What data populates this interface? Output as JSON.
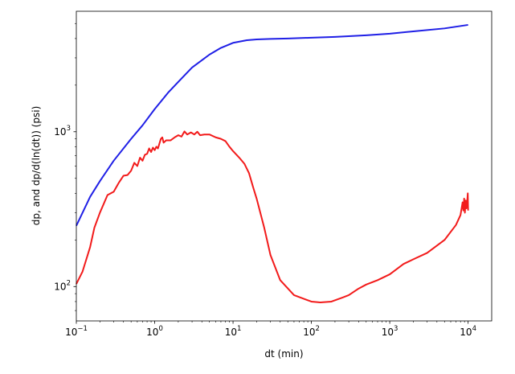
{
  "chart_data": {
    "type": "line",
    "xscale": "log",
    "yscale": "log",
    "xlabel": "dt (min)",
    "ylabel": "dp, and dp/d(ln(dt)) (psi)",
    "xlim": [
      0.1,
      20000
    ],
    "ylim": [
      60,
      6000
    ],
    "grid": false,
    "x_ticks": [
      {
        "value": 0.1,
        "base": "10",
        "exp": "−1"
      },
      {
        "value": 1,
        "base": "10",
        "exp": "0"
      },
      {
        "value": 10,
        "base": "10",
        "exp": "1"
      },
      {
        "value": 100,
        "base": "10",
        "exp": "2"
      },
      {
        "value": 1000,
        "base": "10",
        "exp": "3"
      },
      {
        "value": 10000,
        "base": "10",
        "exp": "4"
      }
    ],
    "y_ticks": [
      {
        "value": 100,
        "base": "10",
        "exp": "2"
      },
      {
        "value": 1000,
        "base": "10",
        "exp": "3"
      }
    ],
    "series": [
      {
        "color": "#1f1fe6",
        "points": [
          [
            0.1,
            247
          ],
          [
            0.15,
            380
          ],
          [
            0.2,
            480
          ],
          [
            0.3,
            650
          ],
          [
            0.5,
            900
          ],
          [
            0.7,
            1100
          ],
          [
            1.0,
            1400
          ],
          [
            1.5,
            1800
          ],
          [
            2.0,
            2100
          ],
          [
            3.0,
            2600
          ],
          [
            5.0,
            3150
          ],
          [
            7.0,
            3480
          ],
          [
            10.0,
            3750
          ],
          [
            15.0,
            3900
          ],
          [
            20.0,
            3950
          ],
          [
            30.0,
            3980
          ],
          [
            50.0,
            4000
          ],
          [
            100.0,
            4050
          ],
          [
            200.0,
            4100
          ],
          [
            500.0,
            4200
          ],
          [
            1000.0,
            4300
          ],
          [
            2000.0,
            4450
          ],
          [
            5000.0,
            4650
          ],
          [
            10000.0,
            4900
          ]
        ]
      },
      {
        "color": "#f21a1a",
        "points": [
          [
            0.1,
            104
          ],
          [
            0.12,
            125
          ],
          [
            0.15,
            180
          ],
          [
            0.17,
            240
          ],
          [
            0.2,
            300
          ],
          [
            0.25,
            390
          ],
          [
            0.3,
            410
          ],
          [
            0.35,
            470
          ],
          [
            0.4,
            520
          ],
          [
            0.45,
            525
          ],
          [
            0.5,
            560
          ],
          [
            0.55,
            630
          ],
          [
            0.6,
            600
          ],
          [
            0.65,
            680
          ],
          [
            0.7,
            650
          ],
          [
            0.75,
            710
          ],
          [
            0.8,
            720
          ],
          [
            0.85,
            780
          ],
          [
            0.9,
            740
          ],
          [
            0.95,
            790
          ],
          [
            1.0,
            760
          ],
          [
            1.05,
            800
          ],
          [
            1.1,
            780
          ],
          [
            1.2,
            900
          ],
          [
            1.25,
            920
          ],
          [
            1.3,
            850
          ],
          [
            1.4,
            880
          ],
          [
            1.6,
            880
          ],
          [
            1.8,
            920
          ],
          [
            2.0,
            950
          ],
          [
            2.2,
            930
          ],
          [
            2.4,
            1005
          ],
          [
            2.6,
            960
          ],
          [
            2.9,
            990
          ],
          [
            3.2,
            960
          ],
          [
            3.5,
            1000
          ],
          [
            3.8,
            950
          ],
          [
            4.3,
            960
          ],
          [
            5.0,
            960
          ],
          [
            6.0,
            920
          ],
          [
            7.0,
            900
          ],
          [
            8.0,
            870
          ],
          [
            9.0,
            800
          ],
          [
            10.0,
            750
          ],
          [
            12.0,
            680
          ],
          [
            14.0,
            620
          ],
          [
            16.0,
            540
          ],
          [
            18.0,
            440
          ],
          [
            20.0,
            370
          ],
          [
            25.0,
            240
          ],
          [
            30.0,
            160
          ],
          [
            40.0,
            110
          ],
          [
            60.0,
            88
          ],
          [
            100.0,
            80
          ],
          [
            130.0,
            79
          ],
          [
            180.0,
            80
          ],
          [
            250.0,
            85
          ],
          [
            300.0,
            88
          ],
          [
            400.0,
            97
          ],
          [
            500.0,
            103
          ],
          [
            700.0,
            110
          ],
          [
            1000.0,
            120
          ],
          [
            1500.0,
            140
          ],
          [
            2000.0,
            150
          ],
          [
            3000.0,
            165
          ],
          [
            5000.0,
            200
          ],
          [
            7000.0,
            250
          ],
          [
            8000.0,
            290
          ],
          [
            8500.0,
            350
          ],
          [
            8700.0,
            310
          ],
          [
            8900.0,
            370
          ],
          [
            9100.0,
            300
          ],
          [
            9300.0,
            360
          ],
          [
            9500.0,
            320
          ],
          [
            9700.0,
            345
          ],
          [
            9900.0,
            400
          ],
          [
            10000.0,
            310
          ]
        ]
      }
    ]
  }
}
